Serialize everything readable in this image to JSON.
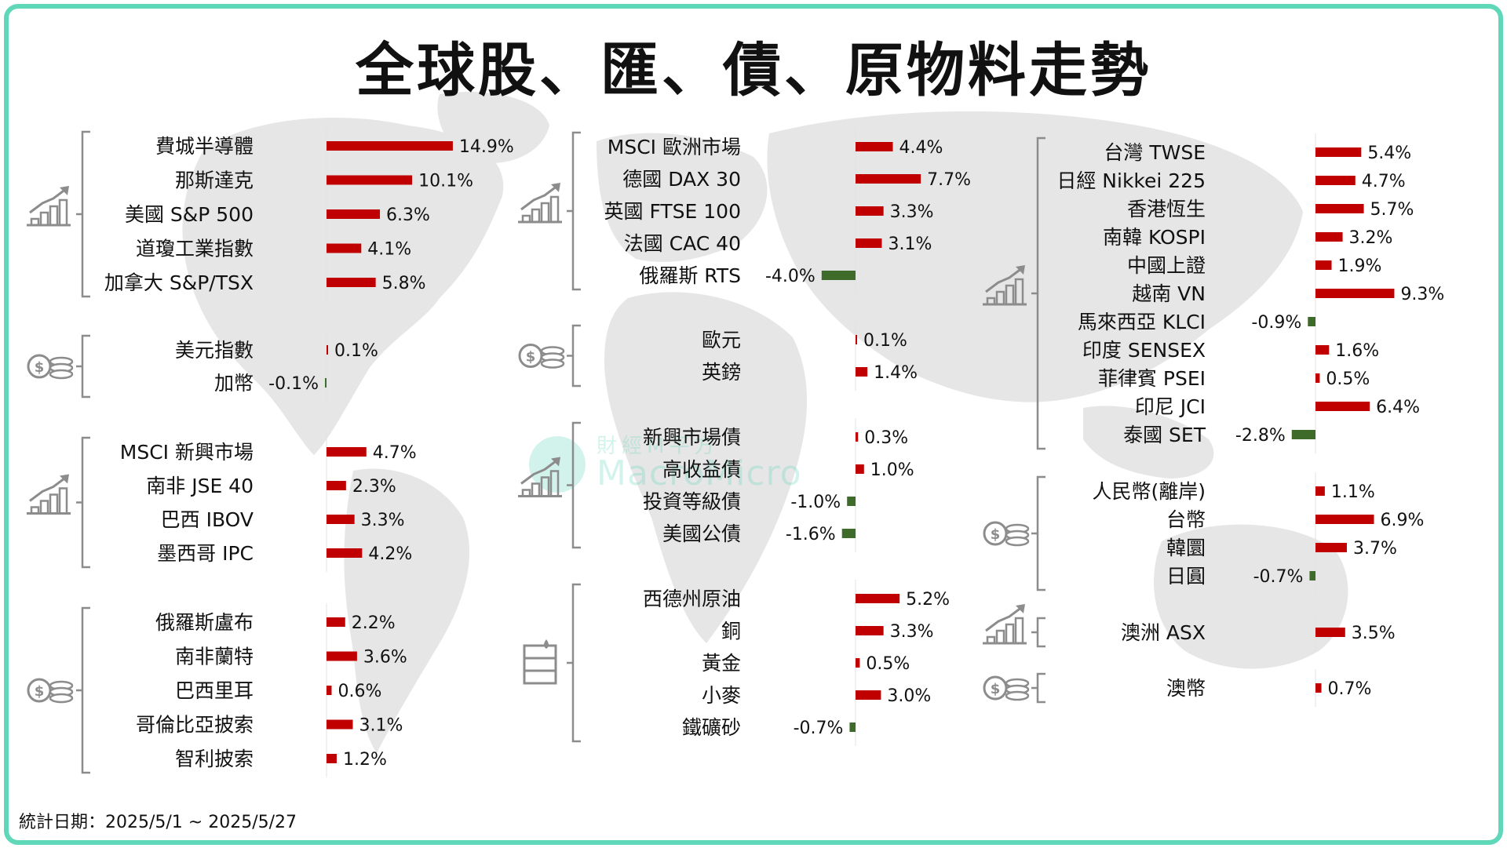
{
  "title": "全球股、匯、債、原物料走勢",
  "footnote": "統計日期：2025/5/1 ~ 2025/5/27",
  "watermark": {
    "brand": "MacroMicro",
    "cn": "財經M平方"
  },
  "colors": {
    "positive": "#c00000",
    "negative": "#3f6b2a",
    "border": "#5fd7b9",
    "map": "#e6e6e6",
    "icon": "#8c8c8c"
  },
  "chart_data": [
    {
      "type": "bar",
      "group": "stocks-americas",
      "icon": "stock-chart-icon",
      "categories": [
        "費城半導體",
        "那斯達克",
        "美國 S&P 500",
        "道瓊工業指數",
        "加拿大 S&P/TSX"
      ],
      "values": [
        14.9,
        10.1,
        6.3,
        4.1,
        5.8
      ],
      "labels": [
        "14.9%",
        "10.1%",
        "6.3%",
        "4.1%",
        "5.8%"
      ]
    },
    {
      "type": "bar",
      "group": "fx-americas",
      "icon": "coins-icon",
      "categories": [
        "美元指數",
        "加幣"
      ],
      "values": [
        0.1,
        -0.1
      ],
      "labels": [
        "0.1%",
        "-0.1%"
      ]
    },
    {
      "type": "bar",
      "group": "stocks-emerging",
      "icon": "stock-chart-icon",
      "categories": [
        "MSCI 新興市場",
        "南非 JSE 40",
        "巴西 IBOV",
        "墨西哥 IPC"
      ],
      "values": [
        4.7,
        2.3,
        3.3,
        4.2
      ],
      "labels": [
        "4.7%",
        "2.3%",
        "3.3%",
        "4.2%"
      ]
    },
    {
      "type": "bar",
      "group": "fx-emerging",
      "icon": "coins-icon",
      "categories": [
        "俄羅斯盧布",
        "南非蘭特",
        "巴西里耳",
        "哥倫比亞披索",
        "智利披索"
      ],
      "values": [
        2.2,
        3.6,
        0.6,
        3.1,
        1.2
      ],
      "labels": [
        "2.2%",
        "3.6%",
        "0.6%",
        "3.1%",
        "1.2%"
      ]
    },
    {
      "type": "bar",
      "group": "stocks-europe",
      "icon": "stock-chart-icon",
      "categories": [
        "MSCI 歐洲市場",
        "德國 DAX 30",
        "英國 FTSE 100",
        "法國 CAC 40",
        "俄羅斯 RTS"
      ],
      "values": [
        4.4,
        7.7,
        3.3,
        3.1,
        -4.0
      ],
      "labels": [
        "4.4%",
        "7.7%",
        "3.3%",
        "3.1%",
        "-4.0%"
      ]
    },
    {
      "type": "bar",
      "group": "fx-europe",
      "icon": "coins-icon",
      "categories": [
        "歐元",
        "英鎊"
      ],
      "values": [
        0.1,
        1.4
      ],
      "labels": [
        "0.1%",
        "1.4%"
      ]
    },
    {
      "type": "bar",
      "group": "bonds",
      "icon": "stock-chart-icon",
      "categories": [
        "新興市場債",
        "高收益債",
        "投資等級債",
        "美國公債"
      ],
      "values": [
        0.3,
        1.0,
        -1.0,
        -1.6
      ],
      "labels": [
        "0.3%",
        "1.0%",
        "-1.0%",
        "-1.6%"
      ]
    },
    {
      "type": "bar",
      "group": "commodities",
      "icon": "oil-barrel-icon",
      "categories": [
        "西德州原油",
        "銅",
        "黃金",
        "小麥",
        "鐵礦砂"
      ],
      "values": [
        5.2,
        3.3,
        0.5,
        3.0,
        -0.7
      ],
      "labels": [
        "5.2%",
        "3.3%",
        "0.5%",
        "3.0%",
        "-0.7%"
      ]
    },
    {
      "type": "bar",
      "group": "stocks-asia",
      "icon": "stock-chart-icon",
      "categories": [
        "台灣 TWSE",
        "日經 Nikkei 225",
        "香港恆生",
        "南韓 KOSPI",
        "中國上證",
        "越南 VN",
        "馬來西亞 KLCI",
        "印度 SENSEX",
        "菲律賓 PSEI",
        "印尼 JCI",
        "泰國 SET"
      ],
      "values": [
        5.4,
        4.7,
        5.7,
        3.2,
        1.9,
        9.3,
        -0.9,
        1.6,
        0.5,
        6.4,
        -2.8
      ],
      "labels": [
        "5.4%",
        "4.7%",
        "5.7%",
        "3.2%",
        "1.9%",
        "9.3%",
        "-0.9%",
        "1.6%",
        "0.5%",
        "6.4%",
        "-2.8%"
      ]
    },
    {
      "type": "bar",
      "group": "fx-asia",
      "icon": "coins-icon",
      "categories": [
        "人民幣(離岸)",
        "台幣",
        "韓圜",
        "日圓"
      ],
      "values": [
        1.1,
        6.9,
        3.7,
        -0.7
      ],
      "labels": [
        "1.1%",
        "6.9%",
        "3.7%",
        "-0.7%"
      ]
    },
    {
      "type": "bar",
      "group": "stocks-australia",
      "icon": "stock-chart-icon",
      "categories": [
        "澳洲 ASX"
      ],
      "values": [
        3.5
      ],
      "labels": [
        "3.5%"
      ]
    },
    {
      "type": "bar",
      "group": "fx-australia",
      "icon": "coins-icon",
      "categories": [
        "澳幣"
      ],
      "values": [
        0.7
      ],
      "labels": [
        "0.7%"
      ]
    }
  ]
}
